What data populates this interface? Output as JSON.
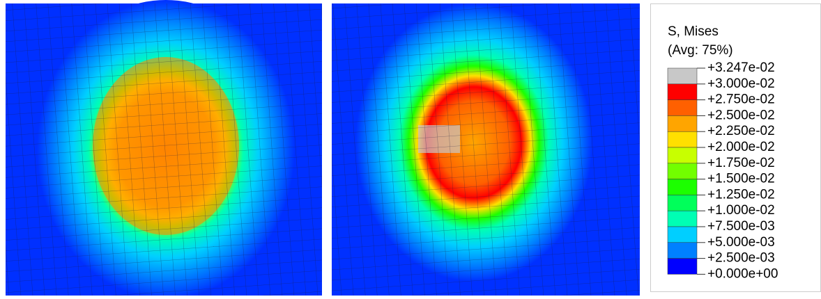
{
  "legend": {
    "title": "S, Mises",
    "subtitle": "(Avg: 75%)",
    "labels": [
      "+3.247e-02",
      "+3.000e-02",
      "+2.750e-02",
      "+2.500e-02",
      "+2.250e-02",
      "+2.000e-02",
      "+1.750e-02",
      "+1.500e-02",
      "+1.250e-02",
      "+1.000e-02",
      "+7.500e-03",
      "+5.000e-03",
      "+2.500e-03",
      "+0.000e+00"
    ],
    "colors": [
      "#c8c8c8",
      "#ff0000",
      "#ff6000",
      "#ffa500",
      "#ffe000",
      "#c8ff00",
      "#72ff00",
      "#1cff00",
      "#00ff5a",
      "#00ffb4",
      "#00cfff",
      "#0080ff",
      "#0000ff"
    ]
  }
}
